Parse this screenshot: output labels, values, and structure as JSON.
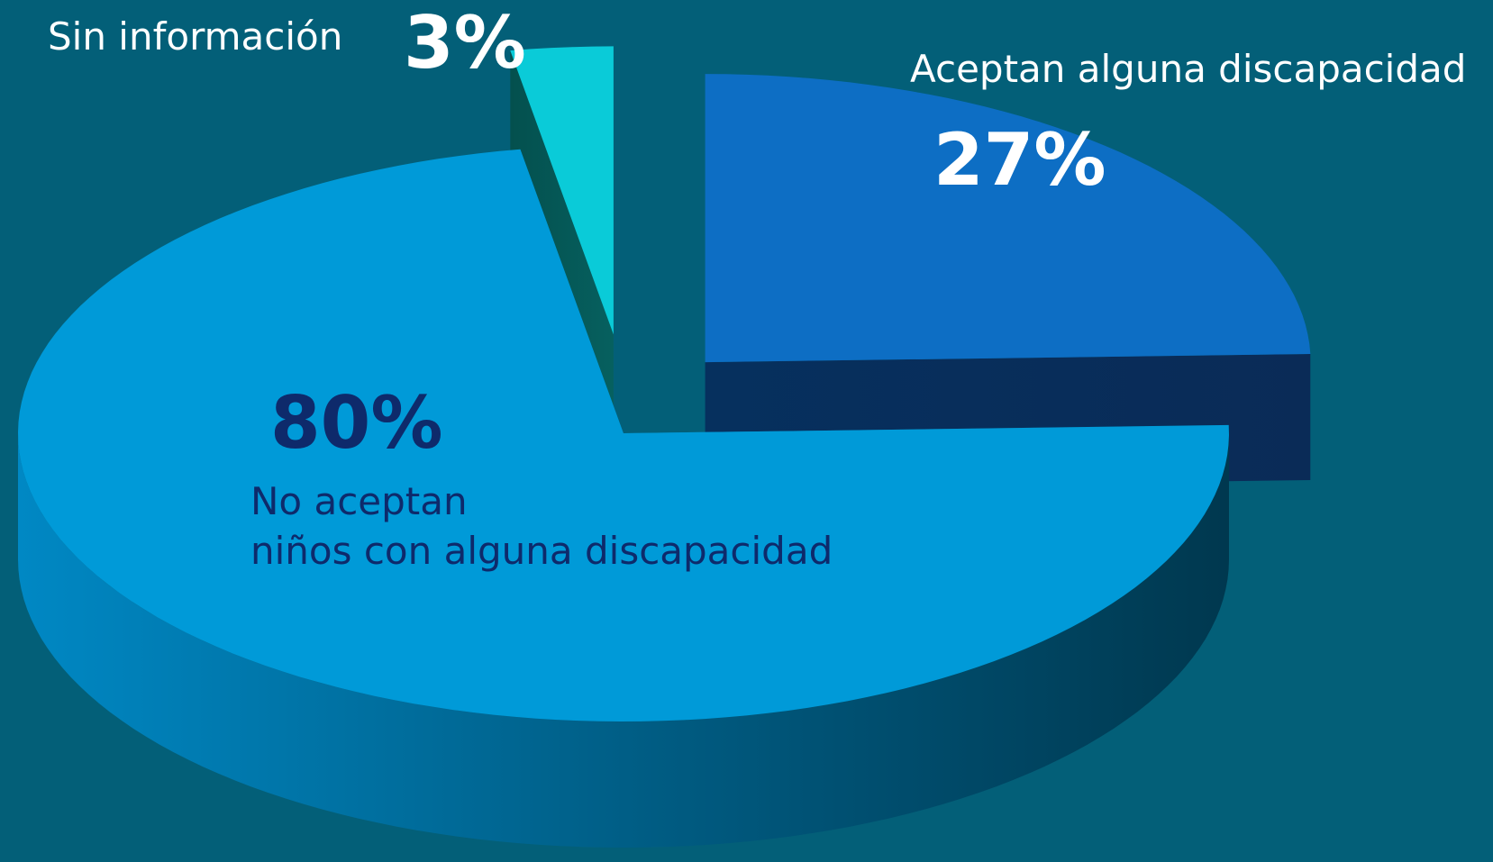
{
  "chart_data": {
    "type": "pie3d",
    "categories": [
      "Sin información",
      "Aceptan alguna discapacidad",
      "No aceptan\nniños con alguna discapacidad"
    ],
    "values": [
      3,
      27,
      80
    ],
    "value_labels": [
      "3%",
      "27%",
      "80%"
    ],
    "colors": [
      "#0acbd8",
      "#0d6ec4",
      "#009ad8"
    ]
  }
}
